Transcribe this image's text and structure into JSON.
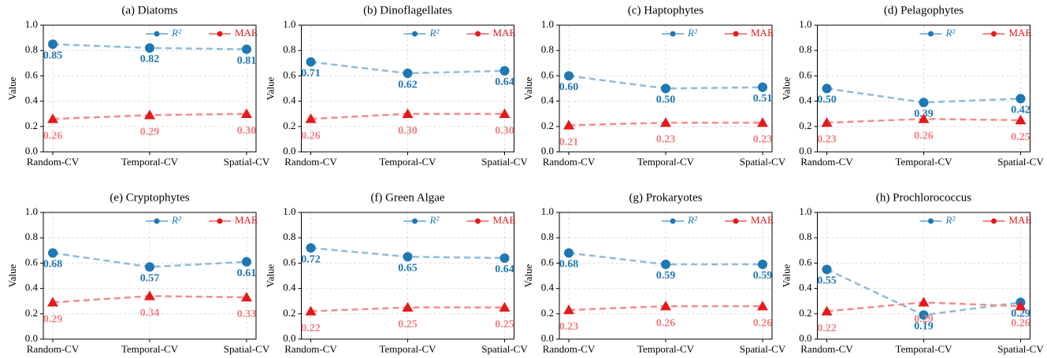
{
  "chart_data": [
    {
      "type": "line",
      "title": "(a) Diatoms",
      "ylabel": "Value",
      "categories": [
        "Random-CV",
        "Temporal-CV",
        "Spatial-CV"
      ],
      "ylim": [
        0,
        1
      ],
      "yticks": [
        {
          "value": 0,
          "label": "0.0"
        },
        0.2,
        0.4,
        0.6,
        0.8,
        {
          "value": 1,
          "label": "1.0"
        }
      ],
      "grid": true,
      "legend": "upper right",
      "series": [
        {
          "name": "R²",
          "color": "#1f77b4",
          "marker": "circle",
          "values": [
            0.85,
            0.82,
            0.81
          ]
        },
        {
          "name": "MAE",
          "color": "#e31a1c",
          "marker": "triangle",
          "values": [
            0.26,
            0.29,
            0.3
          ],
          "value_labels": [
            "0.26",
            "0.29",
            "0.30"
          ]
        }
      ]
    },
    {
      "type": "line",
      "title": "(b) Dinoflagellates",
      "ylabel": "Value",
      "categories": [
        "Random-CV",
        "Temporal-CV",
        "Spatial-CV"
      ],
      "ylim": [
        0,
        1
      ],
      "yticks": [
        {
          "value": 0,
          "label": "0.0"
        },
        0.2,
        0.4,
        0.6,
        0.8,
        {
          "value": 1,
          "label": "1.0"
        }
      ],
      "grid": true,
      "legend": "upper right",
      "series": [
        {
          "name": "R²",
          "color": "#1f77b4",
          "marker": "circle",
          "values": [
            0.71,
            0.62,
            0.64
          ]
        },
        {
          "name": "MAE",
          "color": "#e31a1c",
          "marker": "triangle",
          "values": [
            0.26,
            0.3,
            0.3
          ],
          "value_labels": [
            "0.26",
            "0.30",
            "0.30"
          ]
        }
      ]
    },
    {
      "type": "line",
      "title": "(c) Haptophytes",
      "ylabel": "Value",
      "categories": [
        "Random-CV",
        "Temporal-CV",
        "Spatial-CV"
      ],
      "ylim": [
        0,
        1
      ],
      "yticks": [
        {
          "value": 0,
          "label": "0.0"
        },
        0.2,
        0.4,
        0.6,
        0.8,
        {
          "value": 1,
          "label": "1.0"
        }
      ],
      "grid": true,
      "legend": "upper right",
      "series": [
        {
          "name": "R²",
          "color": "#1f77b4",
          "marker": "circle",
          "values": [
            0.6,
            0.5,
            0.51
          ],
          "value_labels": [
            "0.60",
            "0.50",
            "0.51"
          ]
        },
        {
          "name": "MAE",
          "color": "#e31a1c",
          "marker": "triangle",
          "values": [
            0.21,
            0.23,
            0.23
          ]
        }
      ]
    },
    {
      "type": "line",
      "title": "(d) Pelagophytes",
      "ylabel": "Value",
      "categories": [
        "Random-CV",
        "Temporal-CV",
        "Spatial-CV"
      ],
      "ylim": [
        0,
        1
      ],
      "yticks": [
        {
          "value": 0,
          "label": "0.0"
        },
        0.2,
        0.4,
        0.6,
        0.8,
        {
          "value": 1,
          "label": "1.0"
        }
      ],
      "grid": true,
      "legend": "upper right",
      "series": [
        {
          "name": "R²",
          "color": "#1f77b4",
          "marker": "circle",
          "values": [
            0.5,
            0.39,
            0.42
          ],
          "value_labels": [
            "0.50",
            "0.39",
            "0.42"
          ]
        },
        {
          "name": "MAE",
          "color": "#e31a1c",
          "marker": "triangle",
          "values": [
            0.23,
            0.26,
            0.25
          ]
        }
      ]
    },
    {
      "type": "line",
      "title": "(e) Cryptophytes",
      "ylabel": "Value",
      "categories": [
        "Random-CV",
        "Temporal-CV",
        "Spatial-CV"
      ],
      "ylim": [
        0,
        1
      ],
      "yticks": [
        {
          "value": 0,
          "label": "0.0"
        },
        0.2,
        0.4,
        0.6,
        0.8,
        {
          "value": 1,
          "label": "1.0"
        }
      ],
      "grid": true,
      "legend": "upper right",
      "series": [
        {
          "name": "R²",
          "color": "#1f77b4",
          "marker": "circle",
          "values": [
            0.68,
            0.57,
            0.61
          ]
        },
        {
          "name": "MAE",
          "color": "#e31a1c",
          "marker": "triangle",
          "values": [
            0.29,
            0.34,
            0.33
          ]
        }
      ]
    },
    {
      "type": "line",
      "title": "(f) Green Algae",
      "ylabel": "Value",
      "categories": [
        "Random-CV",
        "Temporal-CV",
        "Spatial-CV"
      ],
      "ylim": [
        0,
        1
      ],
      "yticks": [
        {
          "value": 0,
          "label": "0.0"
        },
        0.2,
        0.4,
        0.6,
        0.8,
        {
          "value": 1,
          "label": "1.0"
        }
      ],
      "grid": true,
      "legend": "upper right",
      "series": [
        {
          "name": "R²",
          "color": "#1f77b4",
          "marker": "circle",
          "values": [
            0.72,
            0.65,
            0.64
          ]
        },
        {
          "name": "MAE",
          "color": "#e31a1c",
          "marker": "triangle",
          "values": [
            0.22,
            0.25,
            0.25
          ]
        }
      ]
    },
    {
      "type": "line",
      "title": "(g) Prokaryotes",
      "ylabel": "Value",
      "categories": [
        "Random-CV",
        "Temporal-CV",
        "Spatial-CV"
      ],
      "ylim": [
        0,
        1
      ],
      "yticks": [
        {
          "value": 0,
          "label": "0.0"
        },
        0.2,
        0.4,
        0.6,
        0.8,
        {
          "value": 1,
          "label": "1.0"
        }
      ],
      "grid": true,
      "legend": "upper right",
      "series": [
        {
          "name": "R²",
          "color": "#1f77b4",
          "marker": "circle",
          "values": [
            0.68,
            0.59,
            0.59
          ]
        },
        {
          "name": "MAE",
          "color": "#e31a1c",
          "marker": "triangle",
          "values": [
            0.23,
            0.26,
            0.26
          ]
        }
      ]
    },
    {
      "type": "line",
      "title": "(h) Prochlorococcus",
      "ylabel": "Value",
      "categories": [
        "Random-CV",
        "Temporal-CV",
        "Spatial-CV"
      ],
      "ylim": [
        0,
        1
      ],
      "yticks": [
        {
          "value": 0,
          "label": "0.0"
        },
        0.2,
        0.4,
        0.6,
        0.8,
        {
          "value": 1,
          "label": "1.0"
        }
      ],
      "grid": true,
      "legend": "upper right",
      "series": [
        {
          "name": "R²",
          "color": "#1f77b4",
          "marker": "circle",
          "values": [
            0.55,
            0.19,
            0.29
          ]
        },
        {
          "name": "MAE",
          "color": "#e31a1c",
          "marker": "triangle",
          "values": [
            0.22,
            0.29,
            0.26
          ]
        }
      ]
    }
  ]
}
